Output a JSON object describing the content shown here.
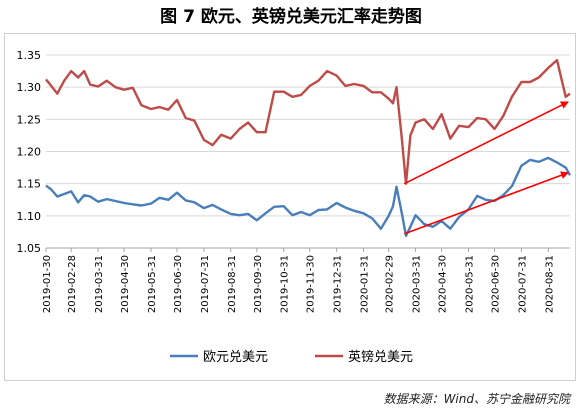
{
  "chart_data": {
    "type": "line",
    "title": "图 7  欧元、英镑兑美元汇率走势图",
    "source": "数据来源：Wind、苏宁金融研究院",
    "xlabel": "",
    "ylabel": "",
    "ylim": [
      1.05,
      1.35
    ],
    "yticks": [
      "1.35",
      "1.30",
      "1.25",
      "1.20",
      "1.15",
      "1.10",
      "1.05"
    ],
    "xticks": [
      "2019-01-30",
      "2019-02-28",
      "2019-03-31",
      "2019-04-30",
      "2019-05-31",
      "2019-06-30",
      "2019-07-31",
      "2019-08-31",
      "2019-09-30",
      "2019-10-31",
      "2019-11-30",
      "2019-12-31",
      "2020-01-31",
      "2020-02-29",
      "2020-03-31",
      "2020-04-30",
      "2020-05-31",
      "2020-06-30",
      "2020-07-31",
      "2020-08-31"
    ],
    "grid": true,
    "legend_position": "bottom",
    "colors": {
      "eur": "#4a7ebb",
      "gbp": "#be4b48",
      "arrow": "#ff0000",
      "grid": "#d9d9d9"
    },
    "series": [
      {
        "name": "欧元兑美元",
        "key": "eur",
        "x": [
          "2019-01-30",
          "2019-02-05",
          "2019-02-12",
          "2019-02-20",
          "2019-02-28",
          "2019-03-08",
          "2019-03-15",
          "2019-03-22",
          "2019-03-31",
          "2019-04-10",
          "2019-04-20",
          "2019-04-30",
          "2019-05-10",
          "2019-05-20",
          "2019-05-31",
          "2019-06-10",
          "2019-06-20",
          "2019-06-30",
          "2019-07-10",
          "2019-07-20",
          "2019-07-31",
          "2019-08-10",
          "2019-08-20",
          "2019-08-31",
          "2019-09-10",
          "2019-09-20",
          "2019-09-30",
          "2019-10-10",
          "2019-10-20",
          "2019-10-31",
          "2019-11-10",
          "2019-11-20",
          "2019-11-30",
          "2019-12-10",
          "2019-12-20",
          "2019-12-31",
          "2020-01-10",
          "2020-01-20",
          "2020-01-31",
          "2020-02-10",
          "2020-02-20",
          "2020-02-29",
          "2020-03-05",
          "2020-03-09",
          "2020-03-15",
          "2020-03-20",
          "2020-03-25",
          "2020-03-31",
          "2020-04-10",
          "2020-04-20",
          "2020-04-30",
          "2020-05-10",
          "2020-05-20",
          "2020-05-31",
          "2020-06-10",
          "2020-06-20",
          "2020-06-30",
          "2020-07-10",
          "2020-07-20",
          "2020-07-31",
          "2020-08-10",
          "2020-08-20",
          "2020-08-31",
          "2020-09-10",
          "2020-09-20",
          "2020-09-25"
        ],
        "y": [
          1.147,
          1.141,
          1.13,
          1.134,
          1.138,
          1.121,
          1.132,
          1.13,
          1.122,
          1.126,
          1.123,
          1.12,
          1.118,
          1.116,
          1.119,
          1.128,
          1.125,
          1.136,
          1.124,
          1.121,
          1.112,
          1.117,
          1.11,
          1.103,
          1.101,
          1.103,
          1.093,
          1.104,
          1.114,
          1.115,
          1.101,
          1.106,
          1.101,
          1.109,
          1.11,
          1.12,
          1.113,
          1.108,
          1.104,
          1.096,
          1.08,
          1.1,
          1.115,
          1.145,
          1.105,
          1.069,
          1.083,
          1.101,
          1.087,
          1.083,
          1.092,
          1.08,
          1.098,
          1.11,
          1.131,
          1.125,
          1.123,
          1.132,
          1.146,
          1.178,
          1.187,
          1.184,
          1.19,
          1.183,
          1.175,
          1.163
        ]
      },
      {
        "name": "英镑兑美元",
        "key": "gbp",
        "x": [
          "2019-01-30",
          "2019-02-05",
          "2019-02-12",
          "2019-02-20",
          "2019-02-28",
          "2019-03-08",
          "2019-03-15",
          "2019-03-22",
          "2019-03-31",
          "2019-04-10",
          "2019-04-20",
          "2019-04-30",
          "2019-05-10",
          "2019-05-20",
          "2019-05-31",
          "2019-06-10",
          "2019-06-20",
          "2019-06-30",
          "2019-07-10",
          "2019-07-20",
          "2019-07-31",
          "2019-08-10",
          "2019-08-20",
          "2019-08-31",
          "2019-09-10",
          "2019-09-20",
          "2019-09-30",
          "2019-10-10",
          "2019-10-20",
          "2019-10-31",
          "2019-11-10",
          "2019-11-20",
          "2019-11-30",
          "2019-12-10",
          "2019-12-20",
          "2019-12-31",
          "2020-01-10",
          "2020-01-20",
          "2020-01-31",
          "2020-02-10",
          "2020-02-20",
          "2020-02-29",
          "2020-03-05",
          "2020-03-09",
          "2020-03-15",
          "2020-03-20",
          "2020-03-25",
          "2020-03-31",
          "2020-04-10",
          "2020-04-20",
          "2020-04-30",
          "2020-05-10",
          "2020-05-20",
          "2020-05-31",
          "2020-06-10",
          "2020-06-20",
          "2020-06-30",
          "2020-07-10",
          "2020-07-20",
          "2020-07-31",
          "2020-08-10",
          "2020-08-20",
          "2020-08-31",
          "2020-09-10",
          "2020-09-20",
          "2020-09-25"
        ],
        "y": [
          1.312,
          1.302,
          1.29,
          1.31,
          1.325,
          1.315,
          1.325,
          1.304,
          1.301,
          1.31,
          1.3,
          1.296,
          1.299,
          1.272,
          1.266,
          1.269,
          1.265,
          1.28,
          1.252,
          1.248,
          1.218,
          1.21,
          1.226,
          1.22,
          1.235,
          1.245,
          1.23,
          1.23,
          1.293,
          1.293,
          1.285,
          1.288,
          1.302,
          1.31,
          1.325,
          1.318,
          1.302,
          1.305,
          1.302,
          1.292,
          1.292,
          1.282,
          1.275,
          1.3,
          1.222,
          1.15,
          1.225,
          1.245,
          1.25,
          1.235,
          1.258,
          1.22,
          1.24,
          1.238,
          1.252,
          1.25,
          1.235,
          1.255,
          1.285,
          1.308,
          1.308,
          1.315,
          1.33,
          1.342,
          1.285,
          1.29
        ]
      }
    ],
    "annotations": [
      {
        "type": "arrow",
        "from": [
          "2020-03-18",
          1.15
        ],
        "to": [
          "2020-09-25",
          1.277
        ]
      },
      {
        "type": "arrow",
        "from": [
          "2020-03-18",
          1.072
        ],
        "to": [
          "2020-09-25",
          1.167
        ]
      }
    ]
  }
}
